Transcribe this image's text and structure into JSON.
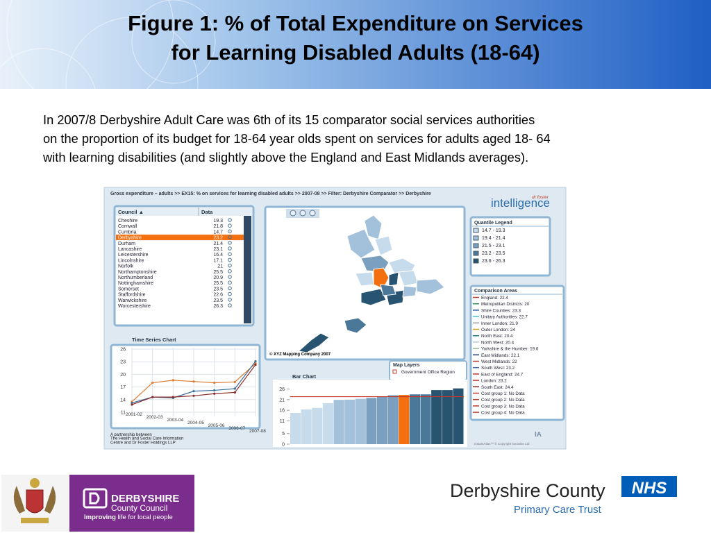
{
  "header": {
    "title_lines": [
      "Figure 1: % of Total Expenditure on Services",
      "for Learning Disabled Adults (18-64)"
    ]
  },
  "body": {
    "paragraph_lines": [
      "In 2007/8  Derbyshire Adult Care was 6th of its 15 comparator social services authorities",
      "on the proportion of its budget for 18-64 year olds spent on services for adults aged 18- 64",
      "with learning disabilities (and slightly above the England and East Midlands averages)."
    ]
  },
  "dashboard": {
    "breadcrumb": "Gross expenditure – adults >> EX15: % on services for learning disabled adults >>  2007-08 >> Filter:  Derbyshire Comparator >>  Derbyshire",
    "brand": {
      "small": "dr foster",
      "name": "intelligence"
    },
    "table": {
      "columns": [
        "Council ▲",
        "Data"
      ],
      "selected": 3,
      "rows": [
        [
          "Cheshire",
          "19.3"
        ],
        [
          "Cornwall",
          "21.8"
        ],
        [
          "Cumbria",
          "14.7"
        ],
        [
          "Derbyshire",
          "23.2"
        ],
        [
          "Durham",
          "21.4"
        ],
        [
          "Lancashire",
          "23.1"
        ],
        [
          "Leicestershire",
          "16.4"
        ],
        [
          "Lincolnshire",
          "17.1"
        ],
        [
          "Norfolk",
          "21"
        ],
        [
          "Northamptonshire",
          "25.5"
        ],
        [
          "Northumberland",
          "20.9"
        ],
        [
          "Nottinghamshire",
          "25.5"
        ],
        [
          "Somerset",
          "23.5"
        ],
        [
          "Staffordshire",
          "22.6"
        ],
        [
          "Warwickshire",
          "23.5"
        ],
        [
          "Worcestershire",
          "26.3"
        ]
      ]
    },
    "map_credit": "© XYZ Mapping Company 2007",
    "quantile_legend": {
      "title": "Quantile Legend",
      "items": [
        {
          "label": "14.7 - 19.3",
          "color": "#c6dbec"
        },
        {
          "label": "19.4 - 21.4",
          "color": "#a3c1da"
        },
        {
          "label": "21.5 - 23.1",
          "color": "#7a9fbf"
        },
        {
          "label": "23.2 - 23.5",
          "color": "#4b7799"
        },
        {
          "label": "23.6 - 26.3",
          "color": "#285472"
        }
      ]
    },
    "comparison_areas": {
      "title": "Comparison Areas",
      "items": [
        {
          "label": "England: 22.4",
          "color": "#c0392b"
        },
        {
          "label": "Metropolitan Districts: 20",
          "color": "#2e8b57"
        },
        {
          "label": "Shire Counties: 23.3",
          "color": "#2a5aa8"
        },
        {
          "label": "Unitary Authorities: 22.7",
          "color": "#48c0d8"
        },
        {
          "label": "Inner London: 21.9",
          "color": "#999999"
        },
        {
          "label": "Outer London: 24",
          "color": "#d4a017"
        },
        {
          "label": "North East: 20.4",
          "color": "#1f7a7a"
        },
        {
          "label": "North West: 20.4",
          "color": "#b5c8d8"
        },
        {
          "label": "Yorkshire & the Humber: 19.6",
          "color": "#8fbc8f"
        },
        {
          "label": "East Midlands: 22.1",
          "color": "#1d3f6e"
        },
        {
          "label": "West Midlands: 22",
          "color": "#c0392b"
        },
        {
          "label": "South West: 23.2",
          "color": "#3a6fb0"
        },
        {
          "label": "East of England: 24.7",
          "color": "#c0392b"
        },
        {
          "label": "London: 23.2",
          "color": "#c0392b"
        },
        {
          "label": "South East: 24.4",
          "color": "#8b1a1a"
        },
        {
          "label": "Cost group 1: No Data",
          "color": "#c0392b"
        },
        {
          "label": "Cost group 2: No Data",
          "color": "#c0392b"
        },
        {
          "label": "Cost group 3: No Data",
          "color": "#c0392b"
        },
        {
          "label": "Cost group 4: No Data",
          "color": "#c0392b"
        }
      ]
    },
    "map_layers": {
      "title": "Map Layers",
      "items": [
        "Government Office Region"
      ]
    },
    "time_series": {
      "type": "line",
      "title": "Time Series Chart",
      "categories": [
        "2001-02",
        "2002-03",
        "2003-04",
        "2004-05",
        "2005-06",
        "2006-07",
        "2007-08"
      ],
      "series": [
        {
          "color": "#e07a2e",
          "values": [
            13.5,
            18,
            18.6,
            18.3,
            18,
            18.2,
            22.6
          ]
        },
        {
          "color": "#3d6f9a",
          "values": [
            13.2,
            14.6,
            14.4,
            16,
            16.2,
            16.6,
            23.1
          ]
        },
        {
          "color": "#8b2b2b",
          "values": [
            12.8,
            14.6,
            14.6,
            14.9,
            15.4,
            15.7,
            22.3
          ]
        }
      ],
      "ylim": [
        10,
        27
      ],
      "yticks": [
        11,
        14,
        17,
        20,
        23,
        26
      ]
    },
    "bar_chart": {
      "type": "bar",
      "title": "Bar Chart",
      "values": [
        14.7,
        16.4,
        17.1,
        19.3,
        20.9,
        21,
        21.4,
        21.8,
        22.6,
        23.1,
        23.2,
        23.5,
        23.5,
        25.5,
        25.5,
        26.3
      ],
      "colors": [
        "#c6dbec",
        "#c6dbec",
        "#c6dbec",
        "#c6dbec",
        "#a3c1da",
        "#a3c1da",
        "#a3c1da",
        "#7a9fbf",
        "#7a9fbf",
        "#7a9fbf",
        "#f36f10",
        "#4b7799",
        "#4b7799",
        "#285472",
        "#285472",
        "#285472"
      ],
      "reference_line": 22.4,
      "reference_color": "#c0392b",
      "ylim": [
        0,
        27.5
      ],
      "yticks": [
        0,
        5,
        11,
        16,
        21,
        26
      ]
    },
    "partnership": [
      "A partnership between",
      "The Health and Social Care Information",
      "Centre and Dr Foster Holdings LLP"
    ],
    "copyright": "InstantAtlas™ © Copyright Geowise Ltd"
  },
  "footer": {
    "council": {
      "name": "DERBYSHIRE",
      "sub": "County Council",
      "slogan_bold": "Improving",
      "slogan": " life for local people"
    },
    "pct": {
      "name": "Derbyshire County",
      "nhs": "NHS",
      "sub": "Primary Care Trust"
    }
  }
}
